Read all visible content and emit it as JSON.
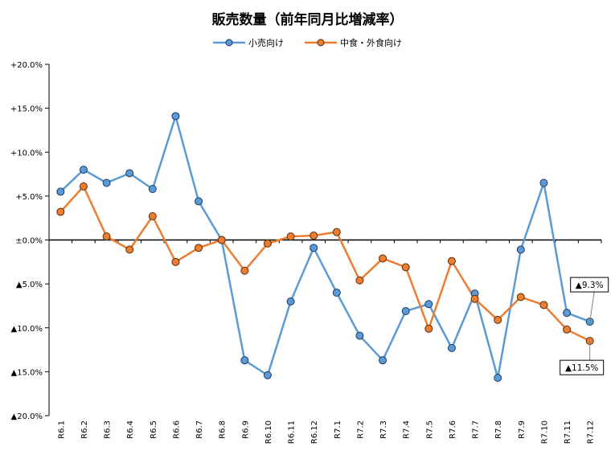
{
  "chart_data": {
    "type": "line",
    "title": "販売数量（前年同月比増減率）",
    "categories": [
      "R6.1",
      "R6.2",
      "R6.3",
      "R6.4",
      "R6.5",
      "R6.6",
      "R6.7",
      "R6.8",
      "R6.9",
      "R6.10",
      "R6.11",
      "R6.12",
      "R7.1",
      "R7.2",
      "R7.3",
      "R7.4",
      "R7.5",
      "R7.6",
      "R7.7",
      "R7.8",
      "R7.9",
      "R7.10",
      "R7.11",
      "R7.12"
    ],
    "series": [
      {
        "name": "小売向け",
        "color": "#5B9BD5",
        "values": [
          5.5,
          8.0,
          6.5,
          7.6,
          5.8,
          14.1,
          4.4,
          0.0,
          -13.7,
          -15.4,
          -7.0,
          -0.9,
          -6.0,
          -10.9,
          -13.7,
          -8.1,
          -7.3,
          -12.3,
          -6.1,
          -15.7,
          -1.1,
          6.5,
          -8.3,
          -9.3
        ]
      },
      {
        "name": "中食・外食向け",
        "color": "#ED7D31",
        "values": [
          3.2,
          6.1,
          0.4,
          -1.1,
          2.7,
          -2.5,
          -0.9,
          0.0,
          -3.5,
          -0.4,
          0.4,
          0.5,
          0.9,
          -4.6,
          -2.1,
          -3.1,
          -10.1,
          -2.4,
          -6.7,
          -9.1,
          -6.5,
          -7.4,
          -10.2,
          -11.5
        ]
      }
    ],
    "ylim": [
      -20,
      20
    ],
    "yticks": [
      20,
      15,
      10,
      5,
      0,
      -5,
      -10,
      -15,
      -20
    ],
    "ytick_labels": [
      "+20.0%",
      "+15.0%",
      "+10.0%",
      "+5.0%",
      "±0.0%",
      "▲5.0%",
      "▲10.0%",
      "▲15.0%",
      "▲20.0%"
    ],
    "annotations": [
      {
        "text": "▲9.3%",
        "series": 0,
        "index": 23
      },
      {
        "text": "▲11.5%",
        "series": 1,
        "index": 23
      }
    ],
    "legend_position": "top",
    "grid": false
  }
}
